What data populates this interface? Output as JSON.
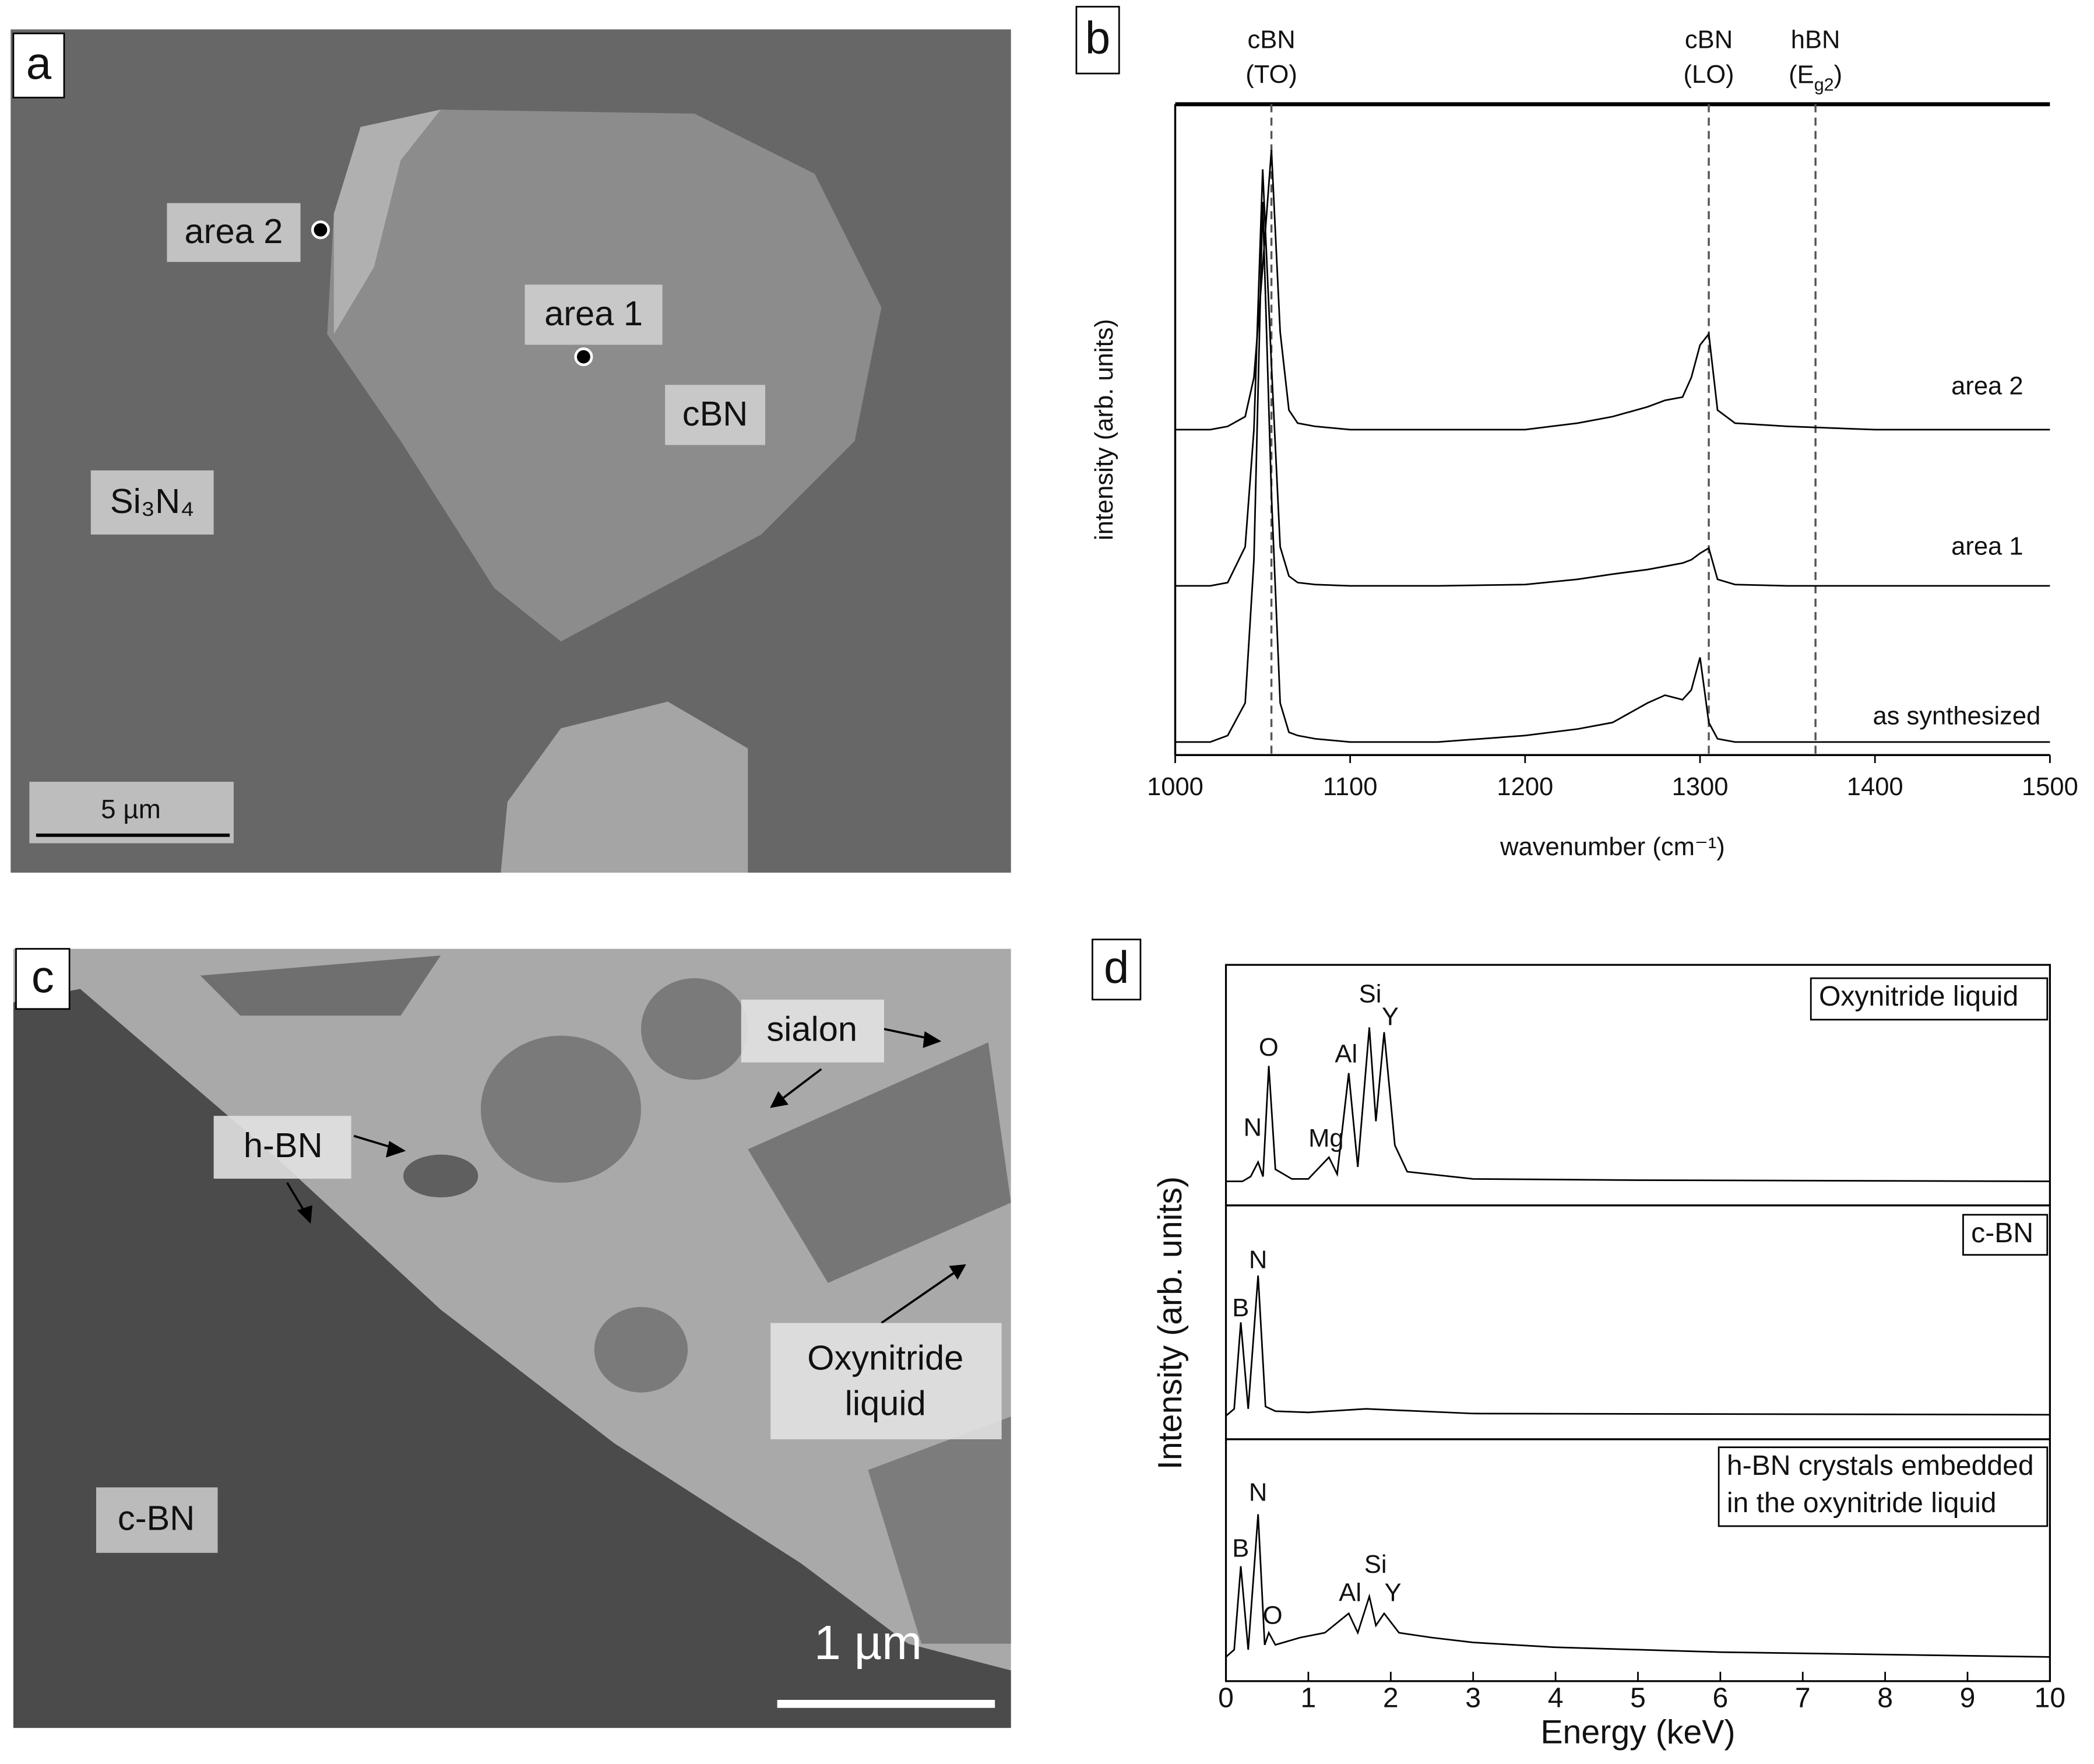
{
  "panels": [
    {
      "label": "a",
      "annotations": [
        "area 2",
        "area 1",
        "cBN",
        "Si₃N₄"
      ],
      "scale_bar": "5 µm"
    },
    {
      "label": "c",
      "annotations": [
        "sialon",
        "h-BN",
        [
          "Oxynitride",
          "liquid"
        ],
        "c-BN"
      ],
      "scale_bar": "1 µm"
    }
  ],
  "chart_data": [
    {
      "type": "line",
      "label": "b",
      "xlabel": "wavenumber (cm⁻¹)",
      "ylabel": "intensity (arb. units)",
      "xlim": [
        1000,
        1500
      ],
      "xticks": [
        1000,
        1100,
        1200,
        1300,
        1400,
        1500
      ],
      "ylim": [
        0,
        10
      ],
      "reference_lines": [
        {
          "x": 1055,
          "label": [
            "cBN",
            "(TO)"
          ]
        },
        {
          "x": 1305,
          "label": [
            "cBN",
            "(LO)"
          ]
        },
        {
          "x": 1366,
          "label": [
            "hBN",
            [
              "(E",
              "g2",
              ")"
            ]
          ]
        }
      ],
      "x": [
        1000,
        1020,
        1030,
        1040,
        1045,
        1050,
        1055,
        1060,
        1065,
        1070,
        1080,
        1100,
        1150,
        1200,
        1230,
        1250,
        1270,
        1280,
        1290,
        1295,
        1300,
        1305,
        1310,
        1320,
        1350,
        1400,
        1450,
        1500
      ],
      "series": [
        {
          "name": "area 2",
          "color": "#000000",
          "values": [
            5.0,
            5.0,
            5.05,
            5.2,
            5.8,
            7.5,
            9.3,
            6.5,
            5.3,
            5.1,
            5.05,
            5.0,
            5.0,
            5.0,
            5.1,
            5.2,
            5.35,
            5.45,
            5.5,
            5.8,
            6.3,
            6.47,
            5.3,
            5.1,
            5.05,
            5.0,
            5.0,
            5.0
          ]
        },
        {
          "name": "area 1",
          "color": "#000000",
          "values": [
            2.6,
            2.6,
            2.65,
            3.2,
            5.0,
            9.0,
            6.0,
            3.2,
            2.75,
            2.65,
            2.62,
            2.6,
            2.6,
            2.62,
            2.7,
            2.78,
            2.85,
            2.9,
            2.95,
            3.0,
            3.1,
            3.18,
            2.7,
            2.62,
            2.6,
            2.6,
            2.6,
            2.6
          ]
        },
        {
          "name": "as synthesized",
          "color": "#000000",
          "values": [
            0.2,
            0.2,
            0.3,
            0.8,
            3.0,
            8.5,
            4.0,
            0.8,
            0.35,
            0.3,
            0.25,
            0.2,
            0.2,
            0.3,
            0.4,
            0.5,
            0.8,
            0.92,
            0.85,
            1.0,
            1.5,
            0.5,
            0.25,
            0.2,
            0.2,
            0.2,
            0.2,
            0.2
          ]
        }
      ]
    },
    {
      "type": "line",
      "label": "d",
      "xlabel": "Energy (keV)",
      "ylabel": "Intensity (arb. units)",
      "color": "#000000",
      "xlim": [
        0,
        10
      ],
      "xticks": [
        0,
        1,
        2,
        3,
        4,
        5,
        6,
        7,
        8,
        9,
        10
      ],
      "subplots": [
        {
          "title": [
            "Oxynitride liquid"
          ],
          "peak_labels": [
            "N",
            "O",
            "Mg",
            "Al",
            "Si",
            "Y"
          ],
          "ylim": [
            0,
            10
          ],
          "x": [
            0,
            0.2,
            0.3,
            0.39,
            0.45,
            0.52,
            0.6,
            0.8,
            1.0,
            1.25,
            1.35,
            1.49,
            1.6,
            1.74,
            1.82,
            1.92,
            2.05,
            2.2,
            3,
            5,
            10
          ],
          "values": [
            1.0,
            1.0,
            1.2,
            1.8,
            1.2,
            5.8,
            1.5,
            1.1,
            1.1,
            2.0,
            1.3,
            5.5,
            1.6,
            7.4,
            3.5,
            7.2,
            2.5,
            1.4,
            1.1,
            1.05,
            1.0
          ]
        },
        {
          "title": [
            "c-BN"
          ],
          "peak_labels": [
            "B",
            "N"
          ],
          "ylim": [
            0,
            10
          ],
          "x": [
            0,
            0.1,
            0.18,
            0.27,
            0.39,
            0.48,
            0.6,
            1,
            1.7,
            3,
            10
          ],
          "values": [
            1.0,
            1.3,
            5.0,
            1.3,
            7.0,
            1.4,
            1.2,
            1.15,
            1.3,
            1.1,
            1.05
          ]
        },
        {
          "title": [
            "h-BN crystals embedded",
            "in the oxynitride liquid"
          ],
          "peak_labels": [
            "B",
            "N",
            "O",
            "Al",
            "Si",
            "Y"
          ],
          "ylim": [
            0,
            10
          ],
          "x": [
            0,
            0.1,
            0.18,
            0.27,
            0.39,
            0.47,
            0.52,
            0.6,
            0.9,
            1.2,
            1.49,
            1.6,
            1.74,
            1.82,
            1.92,
            2.1,
            2.5,
            3,
            4,
            5,
            6,
            8,
            10
          ],
          "values": [
            1.0,
            1.3,
            4.75,
            1.3,
            6.9,
            1.5,
            2.0,
            1.5,
            1.8,
            2.0,
            2.8,
            2.0,
            3.5,
            2.3,
            2.8,
            2.0,
            1.8,
            1.6,
            1.4,
            1.3,
            1.2,
            1.1,
            1.0
          ]
        }
      ]
    }
  ]
}
